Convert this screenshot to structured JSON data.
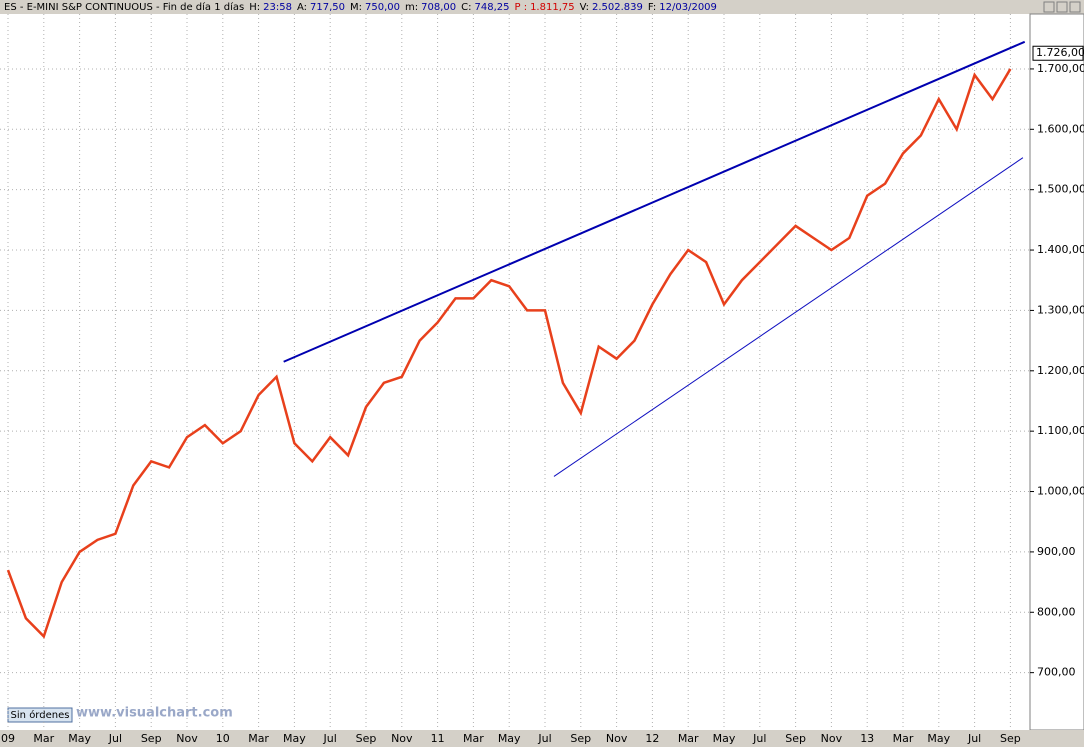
{
  "header": {
    "title": "ES - E-MINI S&P CONTINUOUS - Fin de día 1 días",
    "fields": [
      {
        "label": "H:",
        "value": "23:58"
      },
      {
        "label": "A:",
        "value": "717,50"
      },
      {
        "label": "M:",
        "value": "750,00"
      },
      {
        "label": "m:",
        "value": "708,00"
      },
      {
        "label": "C:",
        "value": "748,25"
      },
      {
        "label": "P :",
        "value": "1.811,75"
      },
      {
        "label": "V:",
        "value": "2.502.839"
      },
      {
        "label": "F:",
        "value": "12/03/2009"
      }
    ]
  },
  "footer": {
    "status": "Sin órdenes",
    "watermark": "www.visualchart.com"
  },
  "chart_data": {
    "type": "line",
    "categories": [
      "09",
      null,
      "Mar",
      null,
      "May",
      null,
      "Jul",
      null,
      "Sep",
      null,
      "Nov",
      null,
      "10",
      null,
      "Mar",
      null,
      "May",
      null,
      "Jul",
      null,
      "Sep",
      null,
      "Nov",
      null,
      "11",
      null,
      "Mar",
      null,
      "May",
      null,
      "Jul",
      null,
      "Sep",
      null,
      "Nov",
      null,
      "12",
      null,
      "Mar",
      null,
      "May",
      null,
      "Jul",
      null,
      "Sep",
      null,
      "Nov",
      null,
      "13",
      null,
      "Mar",
      null,
      "May",
      null,
      "Jul",
      null,
      "Sep"
    ],
    "series": [
      {
        "name": "ES",
        "color": "#e8401c",
        "values": [
          870,
          790,
          760,
          850,
          900,
          920,
          930,
          1010,
          1050,
          1040,
          1090,
          1110,
          1080,
          1100,
          1160,
          1190,
          1080,
          1050,
          1090,
          1060,
          1140,
          1180,
          1190,
          1250,
          1280,
          1320,
          1320,
          1350,
          1340,
          1300,
          1300,
          1180,
          1130,
          1240,
          1220,
          1250,
          1310,
          1360,
          1400,
          1380,
          1310,
          1350,
          1380,
          1410,
          1440,
          1420,
          1400,
          1420,
          1490,
          1510,
          1560,
          1590,
          1650,
          1600,
          1690,
          1650,
          1700
        ]
      }
    ],
    "last_price": {
      "value": 1726,
      "label": "1.726,00"
    },
    "trendlines": [
      {
        "color": "#0000b0",
        "x": [
          15.4,
          56.8
        ],
        "y": [
          1215,
          1745
        ]
      },
      {
        "color": "#1010c0",
        "x": [
          30.5,
          56.7
        ],
        "y": [
          1025,
          1553
        ]
      }
    ],
    "ylim": [
      605,
      1791
    ],
    "yticks": [
      {
        "value": 700,
        "label": "700,00"
      },
      {
        "value": 800,
        "label": "800,00"
      },
      {
        "value": 900,
        "label": "900,00"
      },
      {
        "value": 1000,
        "label": "1.000,00"
      },
      {
        "value": 1100,
        "label": "1.100,00"
      },
      {
        "value": 1200,
        "label": "1.200,00"
      },
      {
        "value": 1300,
        "label": "1.300,00"
      },
      {
        "value": 1400,
        "label": "1.400,00"
      },
      {
        "value": 1500,
        "label": "1.500,00"
      },
      {
        "value": 1600,
        "label": "1.600,00"
      },
      {
        "value": 1700,
        "label": "1.700,00"
      }
    ],
    "grid": true
  }
}
